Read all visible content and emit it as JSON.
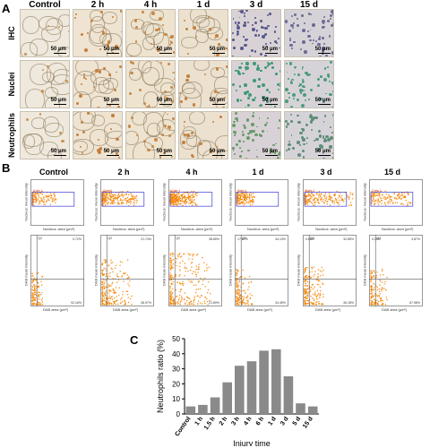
{
  "panel_a": {
    "letter": "A",
    "columns": [
      "Control",
      "2 h",
      "4 h",
      "1 d",
      "3 d",
      "15 d"
    ],
    "rows": [
      "IHC",
      "Nuclei",
      "Neutrophils"
    ],
    "scale_label": "50 μm"
  },
  "panel_b": {
    "letter": "B",
    "columns": [
      "Control",
      "2 h",
      "4 h",
      "1 d",
      "3 d",
      "15 d"
    ],
    "top_row": {
      "x_label": "Nucleus: area (μm²)",
      "y_label": "Nucleus: mean intensity",
      "gate_label": "Gate 1"
    },
    "bottom_row": {
      "x_label": "DAB area (μm²)",
      "y_label": "DAB mean intensity",
      "quadrant_label": "Q2",
      "quadrants": [
        [
          "",
          "0.72%",
          "",
          "92.16%"
        ],
        [
          "",
          "21.74%",
          "",
          "36.97%"
        ],
        [
          "",
          "38.85%",
          "",
          "21.89%"
        ],
        [
          "17.87%",
          "44.13%",
          "",
          "34.45%"
        ],
        [
          "0.88%",
          "32.85%",
          "",
          "45.18%"
        ],
        [
          "0.39%",
          "3.87%",
          "",
          "67.98%"
        ]
      ]
    },
    "colors": {
      "dots": "#f5870a",
      "gate": "#3b3bd6",
      "black": "#000000"
    }
  },
  "panel_c": {
    "letter": "C"
  },
  "chart_data": {
    "type": "bar",
    "title": "",
    "xlabel": "Injury time",
    "ylabel": "Neutrophils ratio (%)",
    "categories": [
      "Control",
      "1 h",
      "1.5 h",
      "2 h",
      "3 h",
      "4 h",
      "6 h",
      "1 d",
      "3 d",
      "5 d",
      "15 d"
    ],
    "values": [
      5,
      6,
      11,
      21,
      32,
      35,
      42,
      43,
      25,
      7,
      5
    ],
    "ylim": [
      0,
      50
    ],
    "yticks": [
      0,
      10,
      20,
      30,
      40,
      50
    ],
    "bar_color": "#8a8a8a",
    "grid": false,
    "legend": "none"
  }
}
